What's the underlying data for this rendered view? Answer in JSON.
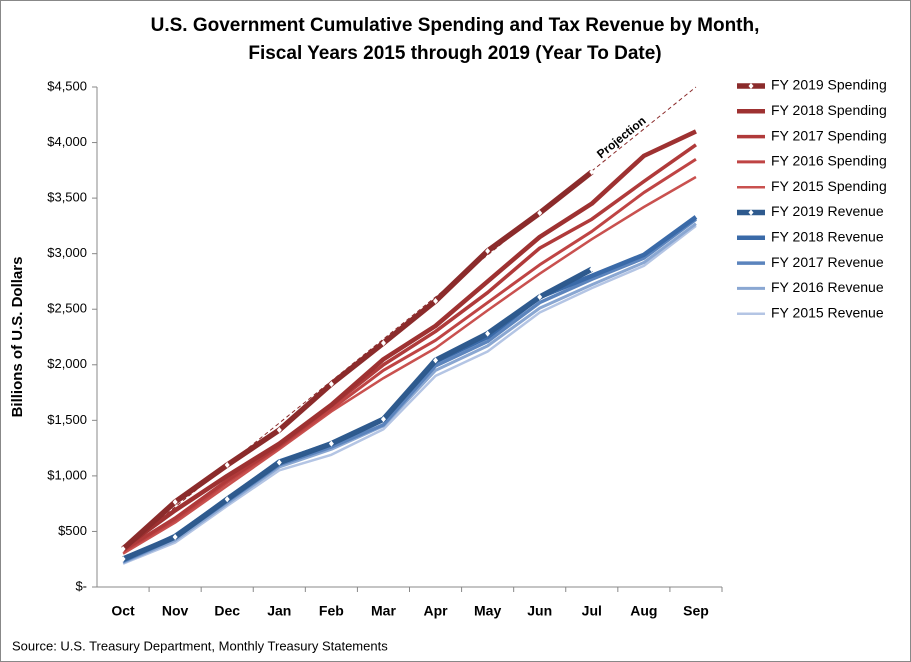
{
  "chart_data": {
    "type": "line",
    "title": [
      "U.S. Government Cumulative Spending and Tax Revenue by Month,",
      "Fiscal Years 2015 through 2019 (Year To Date)"
    ],
    "y_label": "Billions of U.S. Dollars",
    "source": "Source: U.S. Treasury Department, Monthly Treasury Statements",
    "categories": [
      "Oct",
      "Nov",
      "Dec",
      "Jan",
      "Feb",
      "Mar",
      "Apr",
      "May",
      "Jun",
      "Jul",
      "Aug",
      "Sep"
    ],
    "ylim": [
      0,
      4500
    ],
    "yticks": [
      {
        "value": 0,
        "label": "$-"
      },
      {
        "value": 500,
        "label": "$500"
      },
      {
        "value": 1000,
        "label": "$1,000"
      },
      {
        "value": 1500,
        "label": "$1,500"
      },
      {
        "value": 2000,
        "label": "$2,000"
      },
      {
        "value": 2500,
        "label": "$2,500"
      },
      {
        "value": 3000,
        "label": "$3,000"
      },
      {
        "value": 3500,
        "label": "$3,500"
      },
      {
        "value": 4000,
        "label": "$4,000"
      },
      {
        "value": 4500,
        "label": "$4,500"
      }
    ],
    "series": [
      {
        "name": "FY 2019 Spending",
        "color": "#8b2b2b",
        "marker": "diamond",
        "values": [
          342,
          765,
          1098,
          1413,
          1827,
          2196,
          2574,
          3024,
          3366,
          3735,
          null,
          null
        ]
      },
      {
        "name": "FY 2018 Spending",
        "color": "#9e3131",
        "values": [
          350,
          690,
          1000,
          1290,
          1640,
          2050,
          2350,
          2750,
          3150,
          3450,
          3880,
          4100
        ]
      },
      {
        "name": "FY 2017 Spending",
        "color": "#b03a3a",
        "values": [
          330,
          620,
          960,
          1270,
          1630,
          2000,
          2300,
          2650,
          3050,
          3310,
          3650,
          3980
        ]
      },
      {
        "name": "FY 2016 Spending",
        "color": "#bf4444",
        "values": [
          320,
          600,
          940,
          1260,
          1600,
          1950,
          2220,
          2560,
          2900,
          3200,
          3550,
          3850
        ]
      },
      {
        "name": "FY 2015 Spending",
        "color": "#c9514f",
        "values": [
          300,
          580,
          910,
          1240,
          1580,
          1880,
          2150,
          2490,
          2820,
          3130,
          3420,
          3690
        ]
      },
      {
        "name": "FY 2019 Revenue",
        "color": "#2e5a8e",
        "marker": "diamond",
        "values": [
          252,
          450,
          790,
          1120,
          1290,
          1510,
          2040,
          2280,
          2610,
          2860,
          null,
          null
        ]
      },
      {
        "name": "FY 2018 Revenue",
        "color": "#3a6aa8",
        "values": [
          240,
          460,
          790,
          1130,
          1290,
          1510,
          2030,
          2250,
          2610,
          2800,
          2990,
          3330
        ]
      },
      {
        "name": "FY 2017 Revenue",
        "color": "#5b84bd",
        "values": [
          230,
          440,
          770,
          1100,
          1260,
          1460,
          1990,
          2210,
          2560,
          2770,
          2960,
          3310
        ]
      },
      {
        "name": "FY 2016 Revenue",
        "color": "#8aa7d2",
        "values": [
          220,
          420,
          750,
          1080,
          1240,
          1450,
          1950,
          2170,
          2510,
          2720,
          2920,
          3270
        ]
      },
      {
        "name": "FY 2015 Revenue",
        "color": "#b4c5e4",
        "values": [
          210,
          400,
          730,
          1050,
          1190,
          1420,
          1900,
          2120,
          2470,
          2690,
          2890,
          3250
        ]
      }
    ],
    "projection": {
      "label": "Projection",
      "color": "#8b2b2b",
      "values": [
        342,
        720,
        1098,
        1476,
        1854,
        2232,
        2610,
        2988,
        3366,
        3744,
        4122,
        4500
      ]
    }
  }
}
